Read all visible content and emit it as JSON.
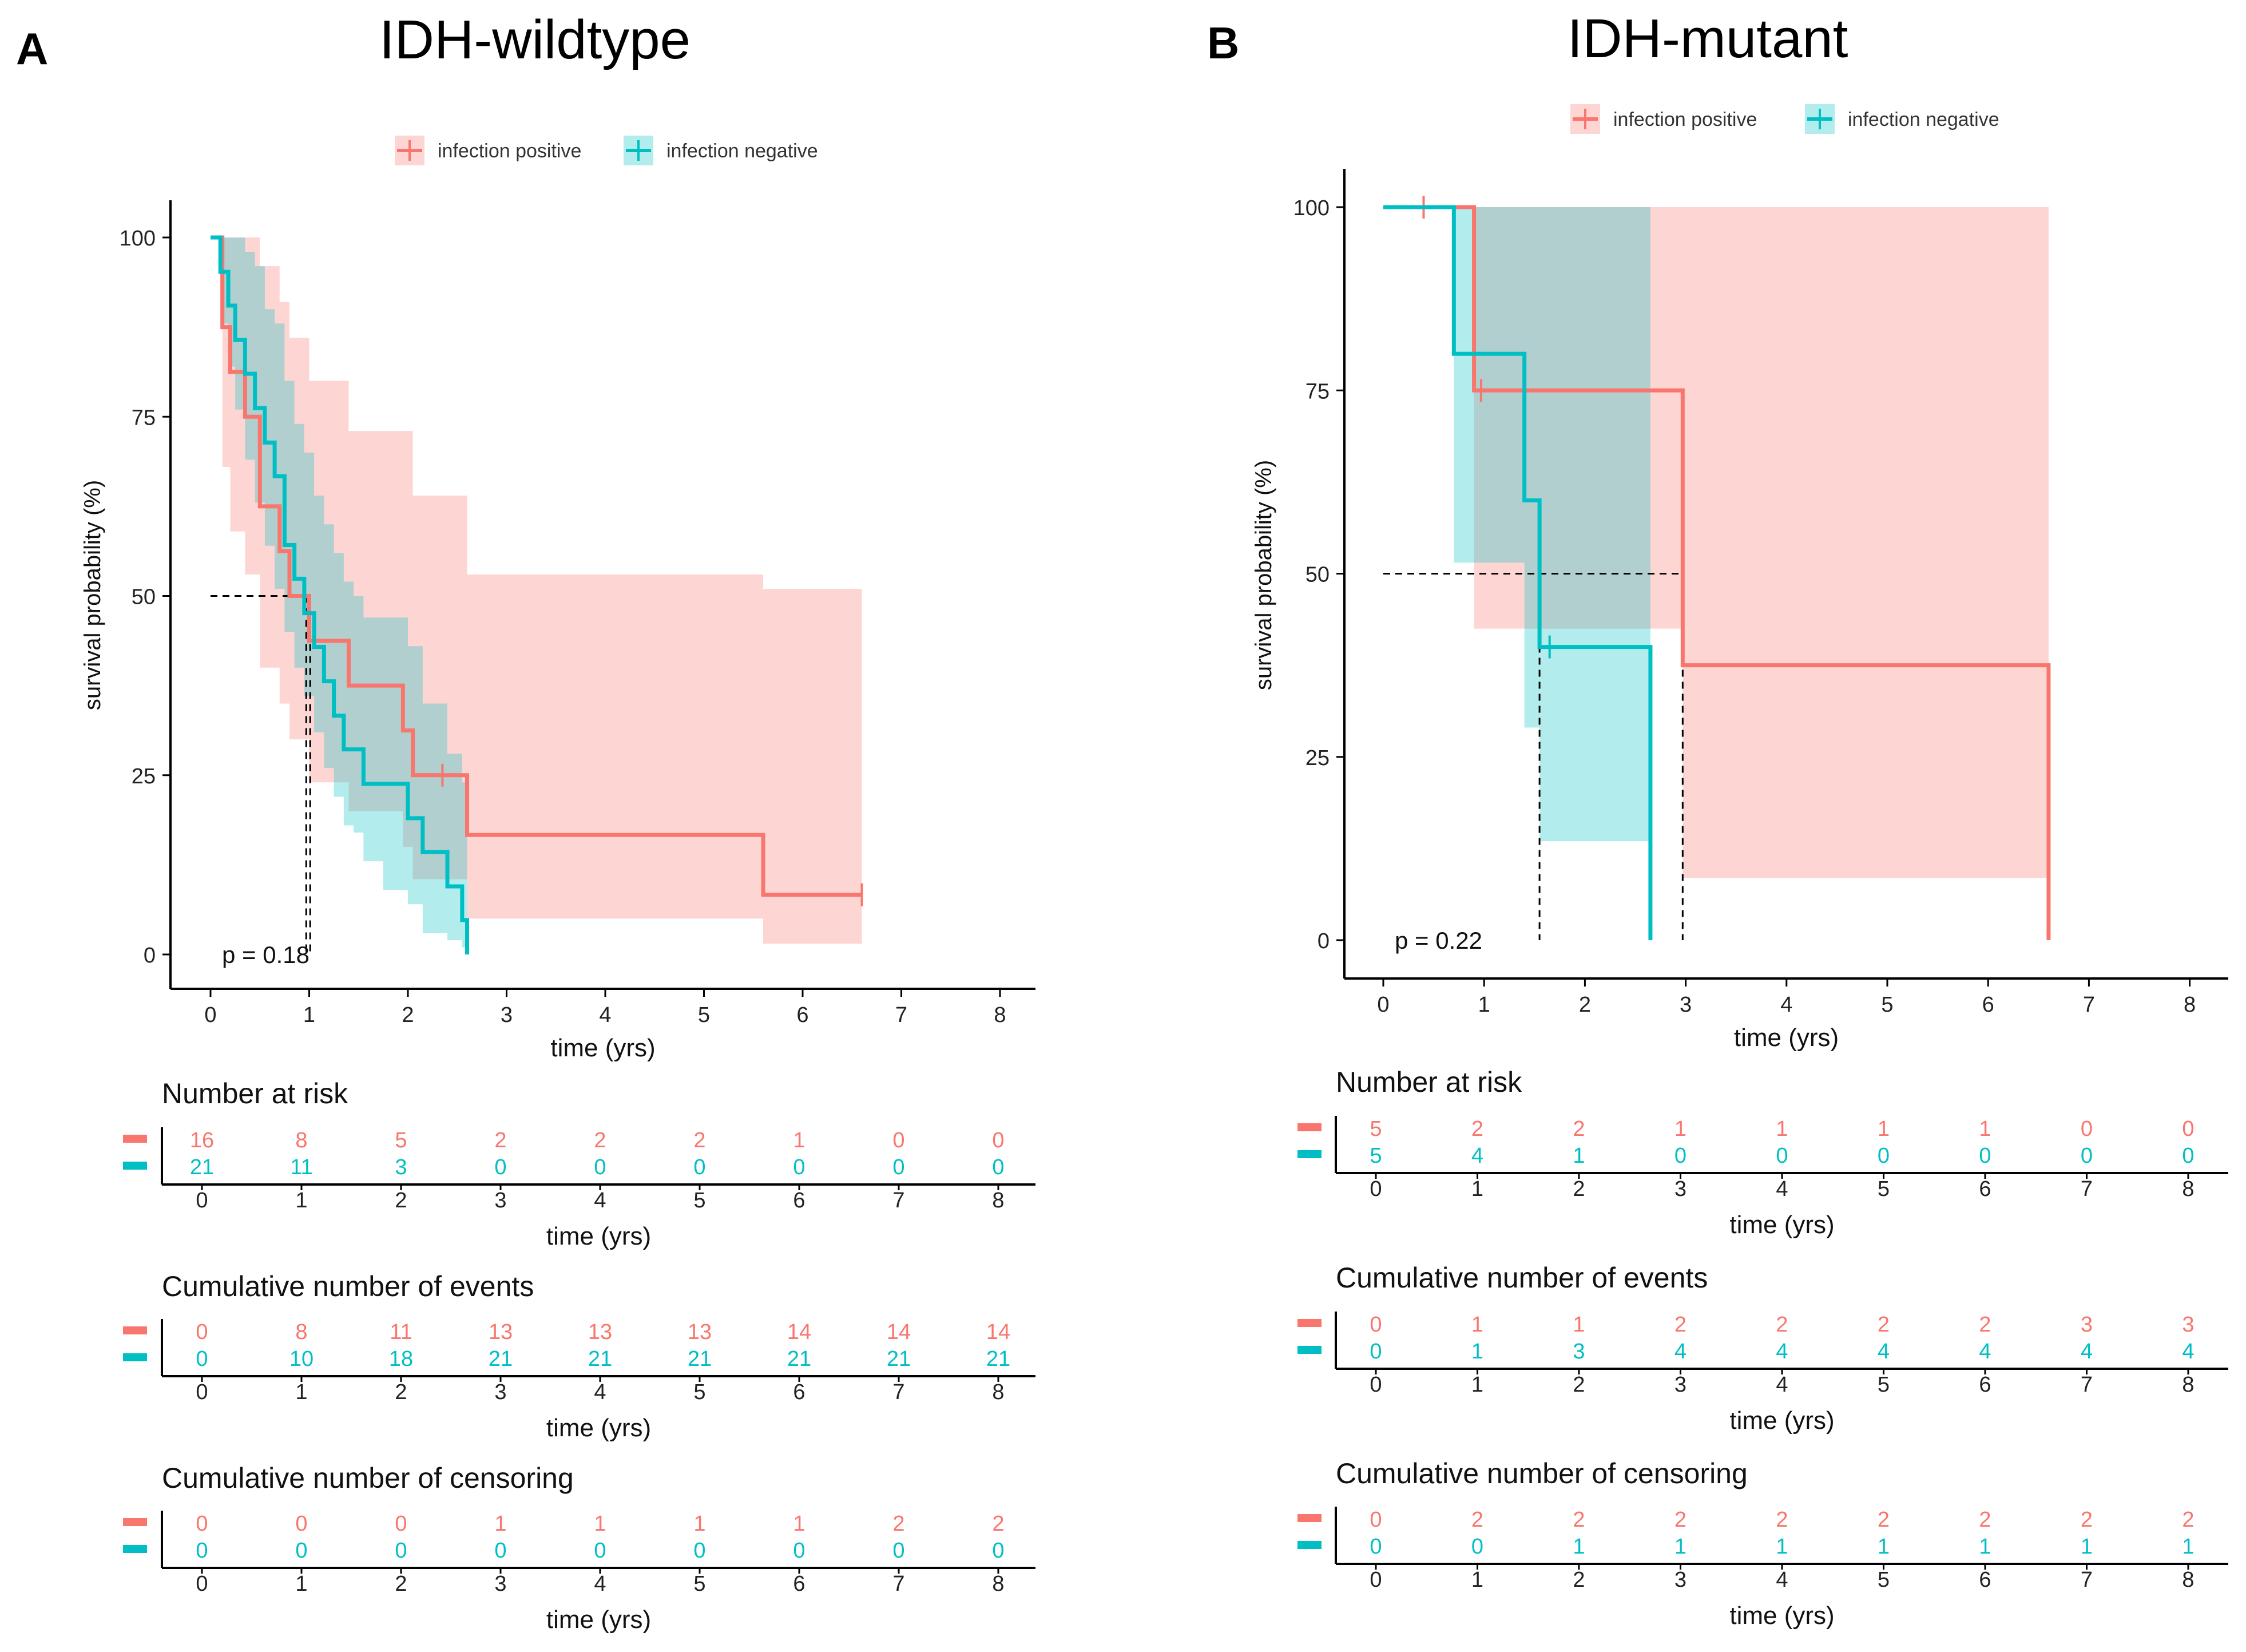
{
  "colors": {
    "positive": "#f8766d",
    "negative": "#00bfc4",
    "axis": "#000000",
    "censor_line": "#000000"
  },
  "legend": {
    "positive_label": "infection positive",
    "negative_label": "infection negative"
  },
  "chart_data": [
    {
      "type": "line",
      "panel_letter": "A",
      "title": "IDH-wildtype",
      "xlabel": "time (yrs)",
      "ylabel": "survival probability (%)",
      "xlim": [
        0,
        8
      ],
      "ylim": [
        0,
        100
      ],
      "x_ticks": [
        "0",
        "1",
        "2",
        "3",
        "4",
        "5",
        "6",
        "7",
        "8"
      ],
      "y_ticks": [
        "0",
        "25",
        "50",
        "75",
        "100"
      ],
      "p_value": "p = 0.18",
      "median_lines": [
        0.97,
        1.01
      ],
      "series": [
        {
          "name": "infection positive",
          "color_key": "positive",
          "times": [
            0,
            0.12,
            0.2,
            0.35,
            0.5,
            0.7,
            0.8,
            1.0,
            1.4,
            1.95,
            2.05,
            2.6,
            5.6,
            6.6
          ],
          "surv": [
            100,
            87.5,
            81.25,
            75,
            62.5,
            56.25,
            50,
            43.75,
            37.5,
            31.25,
            25,
            16.67,
            8.33,
            8.33
          ],
          "upper": [
            100,
            100,
            100,
            100,
            96,
            91,
            86,
            80,
            73,
            73,
            64,
            53,
            51,
            51
          ],
          "lower": [
            100,
            68,
            59,
            53,
            40,
            35,
            30,
            24,
            20,
            15,
            10.5,
            5,
            1.5,
            1.5
          ],
          "censor_times": [
            2.35,
            6.6
          ],
          "censor_surv": [
            25,
            8.33
          ]
        },
        {
          "name": "infection negative",
          "color_key": "negative",
          "times": [
            0,
            0.1,
            0.18,
            0.25,
            0.35,
            0.45,
            0.55,
            0.65,
            0.75,
            0.85,
            0.95,
            1.05,
            1.15,
            1.25,
            1.35,
            1.45,
            1.55,
            1.75,
            2.0,
            2.15,
            2.4,
            2.55,
            2.6
          ],
          "surv": [
            100,
            95.2,
            90.5,
            85.7,
            81,
            76.2,
            71.4,
            66.7,
            57.1,
            52.4,
            47.6,
            42.9,
            38.1,
            33.3,
            28.6,
            28.6,
            23.8,
            23.8,
            19,
            14.3,
            9.5,
            4.8,
            0
          ],
          "upper": [
            100,
            100,
            100,
            100,
            98,
            96,
            90,
            88,
            80,
            74,
            70,
            64,
            60,
            56,
            52,
            50,
            47,
            47,
            43,
            35,
            28,
            24,
            24
          ],
          "lower": [
            100,
            88,
            82,
            76,
            69,
            63,
            57,
            51,
            45,
            40,
            36,
            31,
            26,
            22,
            18,
            17,
            13,
            9,
            7,
            3,
            2,
            1,
            1
          ],
          "censor_times": [],
          "censor_surv": []
        }
      ],
      "tables": [
        {
          "title": "Number at risk",
          "positive": [
            "16",
            "8",
            "5",
            "2",
            "2",
            "2",
            "1",
            "0",
            "0"
          ],
          "negative": [
            "21",
            "11",
            "3",
            "0",
            "0",
            "0",
            "0",
            "0",
            "0"
          ]
        },
        {
          "title": "Cumulative number of events",
          "positive": [
            "0",
            "8",
            "11",
            "13",
            "13",
            "13",
            "14",
            "14",
            "14"
          ],
          "negative": [
            "0",
            "10",
            "18",
            "21",
            "21",
            "21",
            "21",
            "21",
            "21"
          ]
        },
        {
          "title": "Cumulative number of censoring",
          "positive": [
            "0",
            "0",
            "0",
            "1",
            "1",
            "1",
            "1",
            "2",
            "2"
          ],
          "negative": [
            "0",
            "0",
            "0",
            "0",
            "0",
            "0",
            "0",
            "0",
            "0"
          ]
        }
      ]
    },
    {
      "type": "line",
      "panel_letter": "B",
      "title": "IDH-mutant",
      "xlabel": "time (yrs)",
      "ylabel": "survival probability (%)",
      "xlim": [
        0,
        8
      ],
      "ylim": [
        0,
        100
      ],
      "x_ticks": [
        "0",
        "1",
        "2",
        "3",
        "4",
        "5",
        "6",
        "7",
        "8"
      ],
      "y_ticks": [
        "0",
        "25",
        "50",
        "75",
        "100"
      ],
      "p_value": "p = 0.22",
      "median_lines": [
        1.55,
        2.97
      ],
      "series": [
        {
          "name": "infection positive",
          "color_key": "positive",
          "times": [
            0,
            0.9,
            2.97,
            6.6
          ],
          "surv": [
            100,
            75,
            37.5,
            0
          ],
          "upper": [
            100,
            100,
            100,
            100
          ],
          "lower": [
            100,
            42.5,
            8.5,
            8.5
          ],
          "censor_times": [
            0.4,
            0.97
          ],
          "censor_surv": [
            100,
            75
          ]
        },
        {
          "name": "infection negative",
          "color_key": "negative",
          "times": [
            0,
            0.7,
            1.4,
            1.55,
            2.65
          ],
          "surv": [
            100,
            80,
            60,
            40,
            0
          ],
          "upper": [
            100,
            100,
            100,
            100,
            100
          ],
          "lower": [
            100,
            51.5,
            29,
            13.5,
            13.5
          ],
          "censor_times": [
            1.65
          ],
          "censor_surv": [
            40
          ]
        }
      ],
      "tables": [
        {
          "title": "Number at risk",
          "positive": [
            "5",
            "2",
            "2",
            "1",
            "1",
            "1",
            "1",
            "0",
            "0"
          ],
          "negative": [
            "5",
            "4",
            "1",
            "0",
            "0",
            "0",
            "0",
            "0",
            "0"
          ]
        },
        {
          "title": "Cumulative number of events",
          "positive": [
            "0",
            "1",
            "1",
            "2",
            "2",
            "2",
            "2",
            "3",
            "3"
          ],
          "negative": [
            "0",
            "1",
            "3",
            "4",
            "4",
            "4",
            "4",
            "4",
            "4"
          ]
        },
        {
          "title": "Cumulative number of censoring",
          "positive": [
            "0",
            "2",
            "2",
            "2",
            "2",
            "2",
            "2",
            "2",
            "2"
          ],
          "negative": [
            "0",
            "0",
            "1",
            "1",
            "1",
            "1",
            "1",
            "1",
            "1"
          ]
        }
      ]
    }
  ]
}
